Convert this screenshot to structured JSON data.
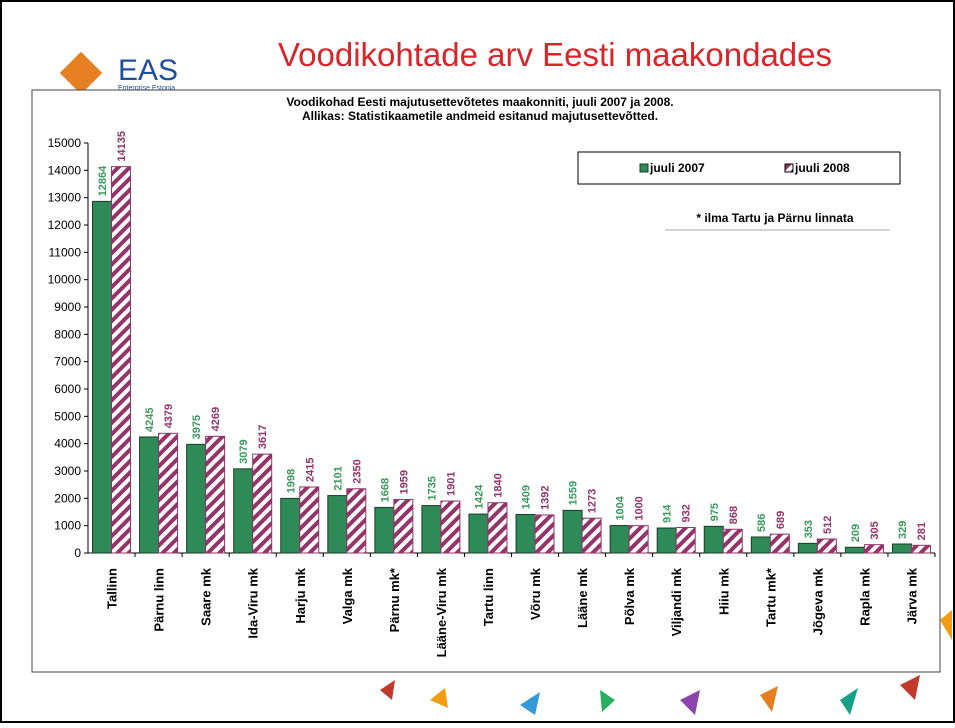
{
  "header": {
    "title": "Voodikohtade arv Eesti maakondades",
    "logo": "EAS",
    "logo_subtitle": "Enterprise Estonia"
  },
  "chart_data": {
    "type": "bar",
    "title": "Voodikohad Eesti majutusettevõtetes maakonniti, juuli 2007 ja 2008.",
    "subtitle": "Allikas: Statistikaametile andmeid esitanud majutusettevõtted.",
    "annotation": "* ilma Tartu ja Pärnu linnata",
    "categories": [
      "Tallinn",
      "Pärnu linn",
      "Saare mk",
      "Ida-Viru mk",
      "Harju mk",
      "Valga mk",
      "Pärnu mk*",
      "Lääne-Viru mk",
      "Tartu linn",
      "Võru mk",
      "Lääne mk",
      "Põlva mk",
      "Viljandi mk",
      "Hiiu mk",
      "Tartu mk*",
      "Jõgeva mk",
      "Rapla mk",
      "Järva mk"
    ],
    "series": [
      {
        "name": "juuli 2007",
        "color": "#2e8b57",
        "values": [
          12864,
          4245,
          3975,
          3079,
          1998,
          2101,
          1668,
          1735,
          1424,
          1409,
          1559,
          1004,
          914,
          975,
          586,
          353,
          209,
          329
        ]
      },
      {
        "name": "juuli 2008",
        "color": "#93346a",
        "values": [
          14135,
          4379,
          4269,
          3617,
          2415,
          2350,
          1959,
          1901,
          1840,
          1392,
          1273,
          1000,
          932,
          868,
          689,
          512,
          305,
          281
        ]
      }
    ],
    "ylim": [
      0,
      15000
    ],
    "yticks": [
      0,
      1000,
      2000,
      3000,
      4000,
      5000,
      6000,
      7000,
      8000,
      9000,
      10000,
      11000,
      12000,
      13000,
      14000,
      15000
    ]
  }
}
